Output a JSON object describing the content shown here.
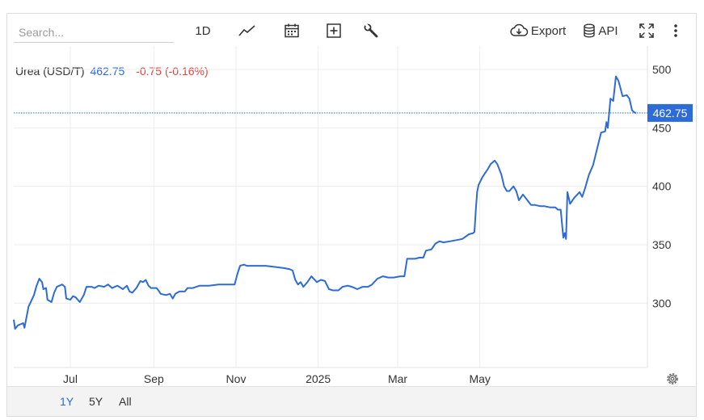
{
  "toolbar": {
    "search_placeholder": "Search...",
    "interval_label": "1D",
    "export_label": "Export",
    "api_label": "API"
  },
  "quote": {
    "name": "Urea (USD/T)",
    "price": "462.75",
    "change": "-0.75 (-0.16%)"
  },
  "ranges": [
    "1Y",
    "5Y",
    "All"
  ],
  "active_range": "1Y",
  "colors": {
    "line": "#2d6bd6",
    "price_label_bg": "#2d6bd6",
    "negative": "#e0453a"
  },
  "chart_data": {
    "type": "line",
    "title": "",
    "xlabel": "",
    "ylabel": "",
    "x_tick_labels": [
      "Jul",
      "Sep",
      "Nov",
      "2025",
      "Mar",
      "May"
    ],
    "y_tick_labels": [
      "300",
      "350",
      "400",
      "450",
      "500"
    ],
    "ylim": [
      245,
      520
    ],
    "last_value_label": "462.75",
    "last_value": 462.75,
    "grid": true,
    "series": [
      {
        "values": [
          [
            "2024-05-20",
            286
          ],
          [
            "2024-05-21",
            278
          ],
          [
            "2024-05-23",
            281
          ],
          [
            "2024-05-27",
            283
          ],
          [
            "2024-05-28",
            279
          ],
          [
            "2024-05-31",
            297
          ],
          [
            "2024-06-04",
            307
          ],
          [
            "2024-06-06",
            315
          ],
          [
            "2024-06-08",
            321
          ],
          [
            "2024-06-10",
            318
          ],
          [
            "2024-06-11",
            312
          ],
          [
            "2024-06-13",
            313
          ],
          [
            "2024-06-14",
            303
          ],
          [
            "2024-06-17",
            301
          ],
          [
            "2024-06-19",
            309
          ],
          [
            "2024-06-21",
            314
          ],
          [
            "2024-06-25",
            316
          ],
          [
            "2024-06-27",
            314
          ],
          [
            "2024-06-28",
            304
          ],
          [
            "2024-07-01",
            303
          ],
          [
            "2024-07-03",
            306
          ],
          [
            "2024-07-05",
            305
          ],
          [
            "2024-07-08",
            301
          ],
          [
            "2024-07-11",
            307
          ],
          [
            "2024-07-13",
            314
          ],
          [
            "2024-07-17",
            314
          ],
          [
            "2024-07-19",
            313
          ],
          [
            "2024-07-22",
            315
          ],
          [
            "2024-07-26",
            314
          ],
          [
            "2024-07-29",
            316
          ],
          [
            "2024-08-01",
            313
          ],
          [
            "2024-08-05",
            315
          ],
          [
            "2024-08-09",
            312
          ],
          [
            "2024-08-12",
            315
          ],
          [
            "2024-08-14",
            310
          ],
          [
            "2024-08-16",
            309
          ],
          [
            "2024-08-19",
            313
          ],
          [
            "2024-08-22",
            319
          ],
          [
            "2024-08-24",
            318
          ],
          [
            "2024-08-26",
            320
          ],
          [
            "2024-08-28",
            315
          ],
          [
            "2024-08-30",
            313
          ],
          [
            "2024-09-03",
            313
          ],
          [
            "2024-09-05",
            310
          ],
          [
            "2024-09-06",
            308
          ],
          [
            "2024-09-10",
            307
          ],
          [
            "2024-09-13",
            308
          ],
          [
            "2024-09-15",
            304
          ],
          [
            "2024-09-17",
            308
          ],
          [
            "2024-09-20",
            310
          ],
          [
            "2024-09-24",
            310
          ],
          [
            "2024-09-26",
            313
          ],
          [
            "2024-09-30",
            313
          ],
          [
            "2024-10-05",
            315
          ],
          [
            "2024-10-12",
            315
          ],
          [
            "2024-10-19",
            316
          ],
          [
            "2024-10-26",
            316
          ],
          [
            "2024-10-31",
            316
          ],
          [
            "2024-11-02",
            325
          ],
          [
            "2024-11-04",
            332
          ],
          [
            "2024-11-07",
            333
          ],
          [
            "2024-11-09",
            332
          ],
          [
            "2024-11-16",
            332
          ],
          [
            "2024-11-23",
            332
          ],
          [
            "2024-11-30",
            331
          ],
          [
            "2024-12-07",
            330
          ],
          [
            "2024-12-11",
            329
          ],
          [
            "2024-12-13",
            328
          ],
          [
            "2024-12-15",
            320
          ],
          [
            "2024-12-17",
            316
          ],
          [
            "2024-12-19",
            318
          ],
          [
            "2024-12-21",
            314
          ],
          [
            "2024-12-24",
            318
          ],
          [
            "2024-12-27",
            323
          ],
          [
            "2024-12-31",
            318
          ],
          [
            "2025-01-03",
            320
          ],
          [
            "2025-01-06",
            319
          ],
          [
            "2025-01-09",
            312
          ],
          [
            "2025-01-12",
            311
          ],
          [
            "2025-01-16",
            311
          ],
          [
            "2025-01-19",
            314
          ],
          [
            "2025-01-23",
            315
          ],
          [
            "2025-01-26",
            314
          ],
          [
            "2025-01-30",
            312
          ],
          [
            "2025-02-03",
            314
          ],
          [
            "2025-02-07",
            314
          ],
          [
            "2025-02-10",
            316
          ],
          [
            "2025-02-14",
            321
          ],
          [
            "2025-02-18",
            323
          ],
          [
            "2025-02-22",
            322
          ],
          [
            "2025-02-26",
            322
          ],
          [
            "2025-03-03",
            323
          ],
          [
            "2025-03-06",
            323
          ],
          [
            "2025-03-08",
            338
          ],
          [
            "2025-03-14",
            338
          ],
          [
            "2025-03-17",
            339
          ],
          [
            "2025-03-20",
            339
          ],
          [
            "2025-03-22",
            345
          ],
          [
            "2025-03-26",
            346
          ],
          [
            "2025-03-29",
            351
          ],
          [
            "2025-04-01",
            353
          ],
          [
            "2025-04-04",
            352
          ],
          [
            "2025-04-09",
            353
          ],
          [
            "2025-04-14",
            354
          ],
          [
            "2025-04-18",
            355
          ],
          [
            "2025-04-23",
            359
          ],
          [
            "2025-04-26",
            360
          ],
          [
            "2025-04-27",
            361
          ],
          [
            "2025-04-28",
            380
          ],
          [
            "2025-04-29",
            395
          ],
          [
            "2025-04-30",
            401
          ],
          [
            "2025-05-03",
            408
          ],
          [
            "2025-05-07",
            415
          ],
          [
            "2025-05-09",
            419
          ],
          [
            "2025-05-12",
            422
          ],
          [
            "2025-05-14",
            419
          ],
          [
            "2025-05-17",
            410
          ],
          [
            "2025-05-19",
            400
          ],
          [
            "2025-05-21",
            396
          ],
          [
            "2025-05-23",
            396
          ],
          [
            "2025-05-26",
            400
          ],
          [
            "2025-05-28",
            396
          ],
          [
            "2025-05-30",
            388
          ],
          [
            "2025-06-02",
            393
          ],
          [
            "2025-06-06",
            387
          ],
          [
            "2025-06-08",
            384
          ],
          [
            "2025-06-11",
            384
          ],
          [
            "2025-06-15",
            383
          ],
          [
            "2025-06-18",
            383
          ],
          [
            "2025-06-22",
            382
          ],
          [
            "2025-06-26",
            382
          ],
          [
            "2025-06-28",
            380
          ],
          [
            "2025-06-30",
            380
          ],
          [
            "2025-07-02",
            356
          ],
          [
            "2025-07-03",
            360
          ],
          [
            "2025-07-04",
            355
          ],
          [
            "2025-07-05",
            395
          ],
          [
            "2025-07-06",
            390
          ],
          [
            "2025-07-07",
            385
          ],
          [
            "2025-07-10",
            390
          ],
          [
            "2025-07-14",
            395
          ],
          [
            "2025-07-16",
            391
          ],
          [
            "2025-07-18",
            398
          ],
          [
            "2025-07-21",
            410
          ],
          [
            "2025-07-24",
            418
          ],
          [
            "2025-07-27",
            432
          ],
          [
            "2025-07-30",
            446
          ],
          [
            "2025-08-02",
            447
          ],
          [
            "2025-08-03",
            455
          ],
          [
            "2025-08-04",
            450
          ],
          [
            "2025-08-06",
            475
          ],
          [
            "2025-08-08",
            473
          ],
          [
            "2025-08-10",
            494
          ],
          [
            "2025-08-12",
            490
          ],
          [
            "2025-08-15",
            477
          ],
          [
            "2025-08-18",
            478
          ],
          [
            "2025-08-20",
            475
          ],
          [
            "2025-08-22",
            465
          ],
          [
            "2025-08-24",
            463
          ],
          [
            "2025-08-25",
            462.75
          ]
        ]
      }
    ]
  }
}
